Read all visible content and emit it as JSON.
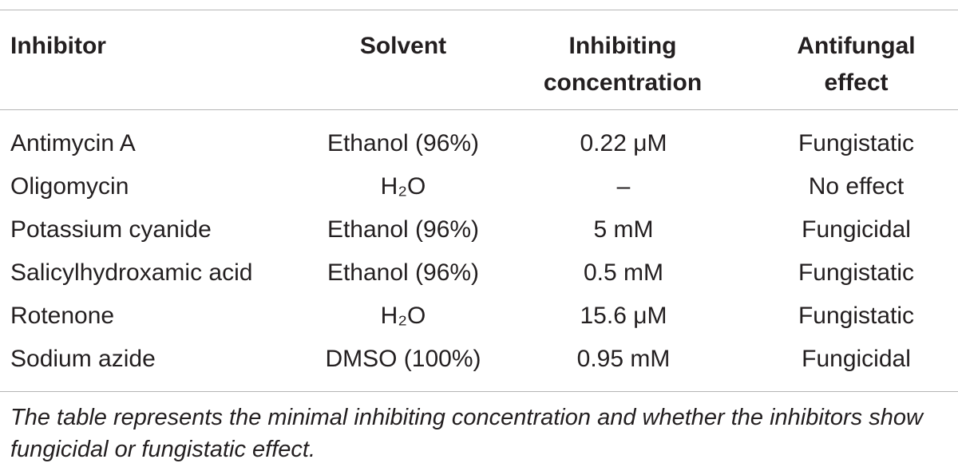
{
  "table": {
    "headers": {
      "inhibitor": "Inhibitor",
      "solvent": "Solvent",
      "concentration_line1": "Inhibiting",
      "concentration_line2": "concentration",
      "effect_line1": "Antifungal",
      "effect_line2": "effect"
    },
    "rows": [
      {
        "inhibitor": "Antimycin A",
        "solvent": "Ethanol (96%)",
        "concentration": "0.22 μM",
        "effect": "Fungistatic"
      },
      {
        "inhibitor": "Oligomycin",
        "solvent": "H₂O",
        "concentration": "–",
        "effect": "No effect"
      },
      {
        "inhibitor": "Potassium cyanide",
        "solvent": "Ethanol (96%)",
        "concentration": "5 mM",
        "effect": "Fungicidal"
      },
      {
        "inhibitor": "Salicylhydroxamic acid",
        "solvent": "Ethanol (96%)",
        "concentration": "0.5 mM",
        "effect": "Fungistatic"
      },
      {
        "inhibitor": "Rotenone",
        "solvent": "H₂O",
        "concentration": "15.6 μM",
        "effect": "Fungistatic"
      },
      {
        "inhibitor": "Sodium azide",
        "solvent": "DMSO (100%)",
        "concentration": "0.95 mM",
        "effect": "Fungicidal"
      }
    ]
  },
  "footnote": "The table represents the minimal inhibiting concentration and whether the inhibitors show fungicidal or fungistatic effect."
}
